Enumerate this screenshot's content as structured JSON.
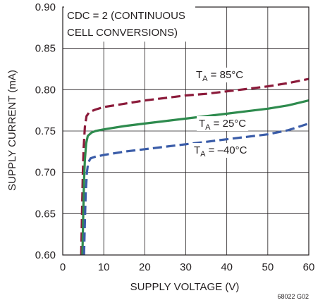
{
  "chart_data": {
    "type": "line",
    "xlabel": "SUPPLY VOLTAGE (V)",
    "ylabel": "SUPPLY CURRENT (mA)",
    "xlim": [
      0,
      60
    ],
    "ylim": [
      0.6,
      0.9
    ],
    "x_ticks": [
      "0",
      "10",
      "20",
      "30",
      "40",
      "50",
      "60"
    ],
    "y_ticks": [
      "0.60",
      "0.65",
      "0.70",
      "0.75",
      "0.80",
      "0.85",
      "0.90"
    ],
    "grid": true,
    "annotation_lines": [
      "CDC = 2 (CONTINUOUS",
      "CELL CONVERSIONS)"
    ],
    "figure_id": "68022 G02",
    "series": [
      {
        "name": "T_A = 85°C",
        "label_main": "T",
        "label_sub": "A",
        "label_rest": " = 85°C",
        "color": "#8b1a3a",
        "dash": "dashed",
        "points": [
          [
            4.5,
            0.6
          ],
          [
            4.7,
            0.65
          ],
          [
            4.9,
            0.7
          ],
          [
            5.1,
            0.73
          ],
          [
            5.4,
            0.755
          ],
          [
            5.8,
            0.768
          ],
          [
            6.5,
            0.773
          ],
          [
            8,
            0.776
          ],
          [
            10,
            0.779
          ],
          [
            15,
            0.783
          ],
          [
            20,
            0.787
          ],
          [
            25,
            0.79
          ],
          [
            30,
            0.793
          ],
          [
            35,
            0.795
          ],
          [
            40,
            0.798
          ],
          [
            45,
            0.801
          ],
          [
            50,
            0.804
          ],
          [
            55,
            0.808
          ],
          [
            60,
            0.813
          ]
        ]
      },
      {
        "name": "T_A = 25°C",
        "label_main": "T",
        "label_sub": "A",
        "label_rest": " = 25°C",
        "color": "#2e8b4e",
        "dash": "solid",
        "points": [
          [
            4.8,
            0.6
          ],
          [
            5.0,
            0.65
          ],
          [
            5.2,
            0.69
          ],
          [
            5.4,
            0.715
          ],
          [
            5.7,
            0.735
          ],
          [
            6.1,
            0.744
          ],
          [
            7,
            0.748
          ],
          [
            8,
            0.75
          ],
          [
            10,
            0.752
          ],
          [
            15,
            0.756
          ],
          [
            20,
            0.759
          ],
          [
            25,
            0.762
          ],
          [
            30,
            0.765
          ],
          [
            35,
            0.768
          ],
          [
            40,
            0.771
          ],
          [
            45,
            0.774
          ],
          [
            50,
            0.777
          ],
          [
            55,
            0.781
          ],
          [
            60,
            0.787
          ]
        ]
      },
      {
        "name": "T_A = –40°C",
        "label_main": "T",
        "label_sub": "A",
        "label_rest": " = –40°C",
        "color": "#3a5ca8",
        "dash": "dashed",
        "points": [
          [
            5.2,
            0.6
          ],
          [
            5.4,
            0.64
          ],
          [
            5.6,
            0.675
          ],
          [
            5.9,
            0.7
          ],
          [
            6.2,
            0.712
          ],
          [
            6.8,
            0.717
          ],
          [
            8,
            0.719
          ],
          [
            10,
            0.721
          ],
          [
            15,
            0.725
          ],
          [
            20,
            0.728
          ],
          [
            25,
            0.731
          ],
          [
            30,
            0.734
          ],
          [
            35,
            0.737
          ],
          [
            40,
            0.74
          ],
          [
            45,
            0.743
          ],
          [
            50,
            0.746
          ],
          [
            55,
            0.751
          ],
          [
            60,
            0.759
          ]
        ]
      }
    ]
  }
}
